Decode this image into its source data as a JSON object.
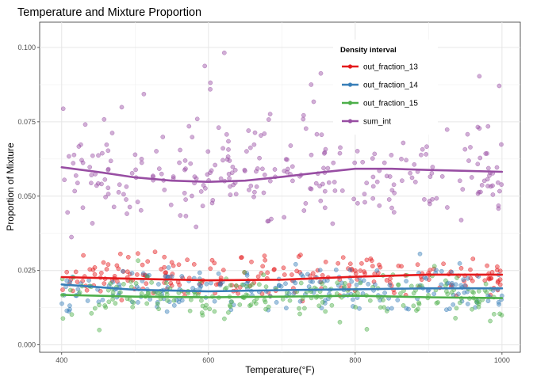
{
  "chart_data": {
    "type": "scatter",
    "title": "Temperature and Mixture Proportion",
    "xlabel": "Temperature(°F)",
    "ylabel": "Proportion of Mixture",
    "xlim": [
      370,
      1025
    ],
    "ylim": [
      -0.0025,
      0.1085
    ],
    "x_ticks": [
      400,
      600,
      800,
      1000
    ],
    "y_ticks": [
      0.0,
      0.025,
      0.05,
      0.075,
      0.1
    ],
    "y_tick_labels": [
      "0.000",
      "0.025",
      "0.050",
      "0.075",
      "0.100"
    ],
    "grid": true,
    "legend": {
      "title": "Density interval",
      "placement": "top-right-inside"
    },
    "colors": {
      "out_fraction_13": "#e41a1c",
      "out_fraction_14": "#377eb8",
      "out_fraction_15": "#4daf4a",
      "sum_int": "#984ea3"
    },
    "series": [
      {
        "name": "out_fraction_13",
        "color": "#e41a1c",
        "point_mean": 0.023,
        "point_spread": 0.006,
        "point_count": 220,
        "point_min": 0.004,
        "point_max": 0.046,
        "smooth": {
          "x": [
            400,
            500,
            600,
            700,
            800,
            900,
            1000
          ],
          "y": [
            0.0228,
            0.0222,
            0.0217,
            0.0219,
            0.0229,
            0.0236,
            0.0236
          ]
        }
      },
      {
        "name": "out_fraction_14",
        "color": "#377eb8",
        "point_mean": 0.019,
        "point_spread": 0.0065,
        "point_count": 220,
        "point_min": 0.003,
        "point_max": 0.036,
        "smooth": {
          "x": [
            400,
            500,
            600,
            700,
            800,
            900,
            1000
          ],
          "y": [
            0.0203,
            0.0185,
            0.018,
            0.0184,
            0.0187,
            0.019,
            0.019
          ]
        }
      },
      {
        "name": "out_fraction_15",
        "color": "#4daf4a",
        "point_mean": 0.0165,
        "point_spread": 0.0065,
        "point_count": 220,
        "point_min": 0.003,
        "point_max": 0.033,
        "smooth": {
          "x": [
            400,
            500,
            600,
            700,
            800,
            900,
            1000
          ],
          "y": [
            0.0168,
            0.0162,
            0.016,
            0.0162,
            0.0165,
            0.016,
            0.0157
          ]
        }
      },
      {
        "name": "sum_int",
        "color": "#984ea3",
        "point_mean": 0.057,
        "point_spread": 0.013,
        "point_count": 300,
        "point_min": 0.03,
        "point_max": 0.104,
        "smooth": {
          "x": [
            400,
            450,
            500,
            550,
            600,
            650,
            700,
            750,
            800,
            850,
            900,
            950,
            1000
          ],
          "y": [
            0.0597,
            0.0581,
            0.0563,
            0.0552,
            0.0548,
            0.0552,
            0.0565,
            0.0579,
            0.0592,
            0.0592,
            0.0588,
            0.0585,
            0.0582
          ]
        }
      }
    ]
  }
}
